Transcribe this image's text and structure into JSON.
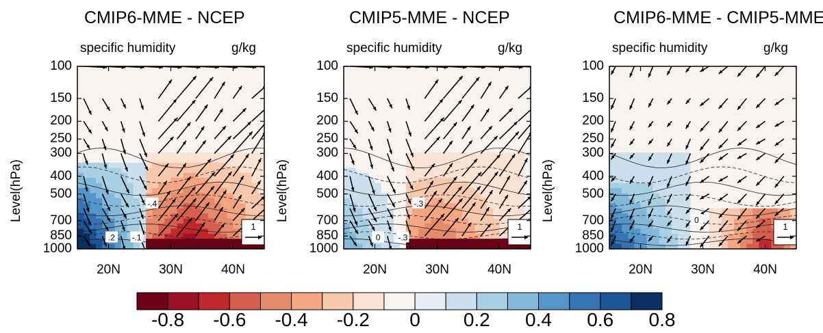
{
  "colors": {
    "scale": [
      "#6b0017",
      "#9c1126",
      "#c0272d",
      "#d6604d",
      "#e68a6c",
      "#f4a582",
      "#f8c8ad",
      "#fbe3d4",
      "#f7f3f0",
      "#e6eef4",
      "#cbe0ef",
      "#a9cfe5",
      "#82b9d9",
      "#5596c8",
      "#3573b2",
      "#1b5596",
      "#0a3061"
    ]
  },
  "chart_data": [
    {
      "type": "heatmap",
      "title": "CMIP6-MME - NCEP",
      "subtitle_left": "specific humidity",
      "subtitle_right": "g/kg",
      "ylabel": "Level(hPa)",
      "xlabel": "",
      "x_ticks": [
        "20N",
        "30N",
        "40N"
      ],
      "x_tick_values": [
        20,
        30,
        40
      ],
      "xlim": [
        15,
        45
      ],
      "y_ticks": [
        "100",
        "150",
        "200",
        "250",
        "300",
        "400",
        "500",
        "700",
        "850",
        "1000"
      ],
      "y_tick_values": [
        100,
        150,
        200,
        250,
        300,
        400,
        500,
        700,
        850,
        1000
      ],
      "ylim": [
        100,
        1000
      ],
      "y_scale": "log",
      "reference_vector": "1",
      "contour_labels": [
        "-.4",
        ".2",
        "-.1"
      ]
    },
    {
      "type": "heatmap",
      "title": "CMIP5-MME - NCEP",
      "subtitle_left": "specific humidity",
      "subtitle_right": "g/kg",
      "ylabel": "Level(hPa)",
      "xlabel": "",
      "x_ticks": [
        "20N",
        "30N",
        "40N"
      ],
      "x_tick_values": [
        20,
        30,
        40
      ],
      "xlim": [
        15,
        45
      ],
      "y_ticks": [
        "100",
        "150",
        "200",
        "250",
        "300",
        "400",
        "500",
        "700",
        "850",
        "1000"
      ],
      "y_tick_values": [
        100,
        150,
        200,
        250,
        300,
        400,
        500,
        700,
        850,
        1000
      ],
      "ylim": [
        100,
        1000
      ],
      "y_scale": "log",
      "reference_vector": "1",
      "contour_labels": [
        "-.3",
        "0",
        "-.3"
      ]
    },
    {
      "type": "heatmap",
      "title": "CMIP6-MME - CMIP5-MME",
      "subtitle_left": "specific humidity",
      "subtitle_right": "g/kg",
      "ylabel": "Level(hPa)",
      "xlabel": "",
      "x_ticks": [
        "20N",
        "30N",
        "40N"
      ],
      "x_tick_values": [
        20,
        30,
        40
      ],
      "xlim": [
        15,
        45
      ],
      "y_ticks": [
        "100",
        "150",
        "200",
        "250",
        "300",
        "400",
        "500",
        "700",
        "850",
        "1000"
      ],
      "y_tick_values": [
        100,
        150,
        200,
        250,
        300,
        400,
        500,
        700,
        850,
        1000
      ],
      "ylim": [
        100,
        1000
      ],
      "y_scale": "log",
      "reference_vector": "1",
      "contour_labels": [
        "0"
      ]
    }
  ],
  "colorbar": {
    "labels": [
      "-0.8",
      "-0.6",
      "-0.4",
      "-0.2",
      "0",
      "0.2",
      "0.4",
      "0.6",
      "0.8"
    ],
    "label_values": [
      -0.8,
      -0.6,
      -0.4,
      -0.2,
      0,
      0.2,
      0.4,
      0.6,
      0.8
    ],
    "boundaries": [
      -0.9,
      -0.8,
      -0.7,
      -0.6,
      -0.5,
      -0.4,
      -0.3,
      -0.2,
      -0.1,
      0,
      0.1,
      0.2,
      0.3,
      0.4,
      0.5,
      0.6,
      0.7,
      0.8,
      0.9
    ]
  }
}
